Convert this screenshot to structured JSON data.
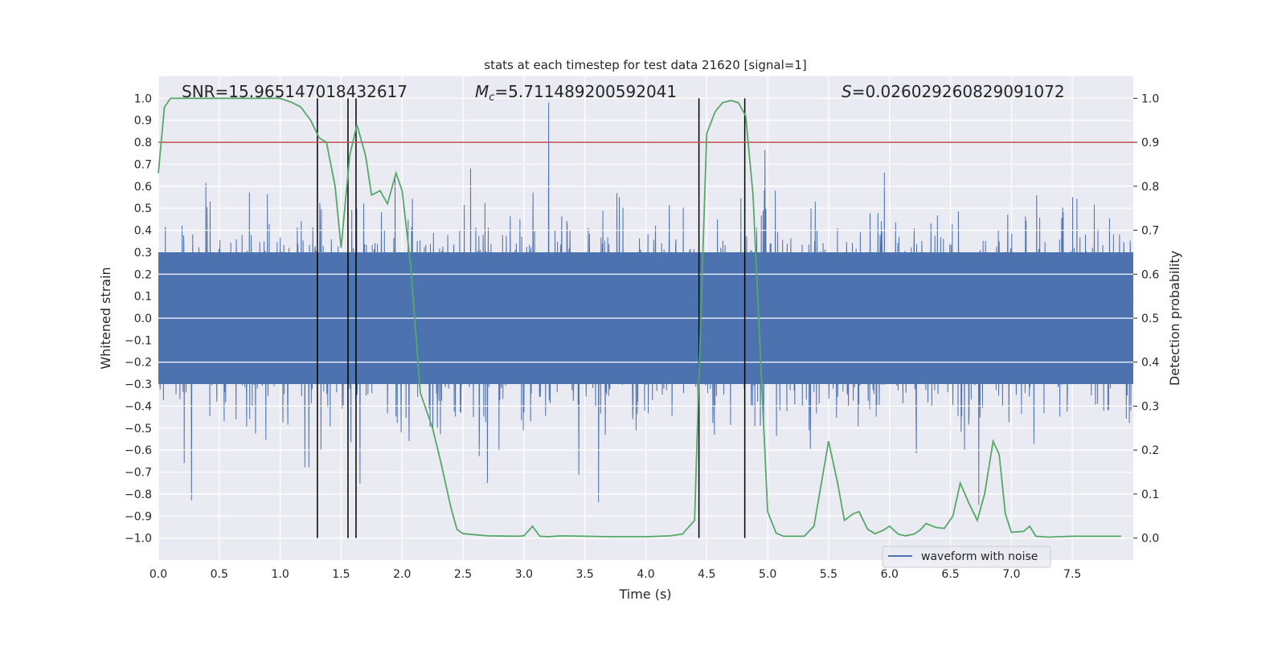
{
  "chart_data": {
    "type": "line",
    "title": "stats at each timestep for test data 21620 [signal=1]",
    "xlabel": "Time (s)",
    "ylabel": "Whitened strain",
    "y2label": "Detection probability",
    "xlim": [
      0,
      8.0
    ],
    "ylim": [
      -1.1,
      1.1
    ],
    "y2lim": [
      -0.05,
      1.05
    ],
    "xticks": [
      "0.0",
      "0.5",
      "1.0",
      "1.5",
      "2.0",
      "2.5",
      "3.0",
      "3.5",
      "4.0",
      "4.5",
      "5.0",
      "5.5",
      "6.0",
      "6.5",
      "7.0",
      "7.5"
    ],
    "yticks": [
      "1.0",
      "0.9",
      "0.8",
      "0.7",
      "0.6",
      "0.5",
      "0.4",
      "0.3",
      "0.2",
      "0.1",
      "0.0",
      "−0.1",
      "−0.2",
      "−0.3",
      "−0.4",
      "−0.5",
      "−0.6",
      "−0.7",
      "−0.8",
      "−0.9",
      "−1.0"
    ],
    "y2ticks": [
      "1.0",
      "0.9",
      "0.8",
      "0.7",
      "0.6",
      "0.5",
      "0.4",
      "0.3",
      "0.2",
      "0.1",
      "0.0"
    ],
    "grid": true,
    "annotations": {
      "snr": "SNR=15.965147018432617",
      "mc_symbol": "M",
      "mc_sub": "c",
      "mc_value": "=5.711489200592041",
      "s_symbol": "S",
      "s_value": "=0.026029260829091072"
    },
    "legend": {
      "placement": "lower-right",
      "entries": [
        "waveform with noise"
      ]
    },
    "threshold": {
      "axis": "left",
      "y": 0.8,
      "color": "#c44e52"
    },
    "vlines": {
      "x": [
        1.305,
        1.556,
        1.622,
        4.436,
        4.812
      ],
      "ymin": -1.0,
      "ymax": 1.0,
      "color": "#000000"
    },
    "series": [
      {
        "name": "waveform with noise",
        "axis": "left",
        "color": "#4c72b0",
        "kind": "noise",
        "typical_range": [
          -0.4,
          0.4
        ],
        "peak_range": [
          -1.0,
          1.0
        ]
      },
      {
        "axis": "right",
        "color": "#55a868",
        "x": [
          0,
          0.05,
          0.1,
          0.3,
          0.6,
          0.9,
          1.0,
          1.1,
          1.17,
          1.25,
          1.32,
          1.38,
          1.45,
          1.5,
          1.57,
          1.63,
          1.7,
          1.75,
          1.82,
          1.88,
          1.95,
          2.0,
          2.07,
          2.15,
          2.25,
          2.32,
          2.4,
          2.45,
          2.5,
          2.7,
          2.95,
          3.0,
          3.07,
          3.13,
          3.2,
          3.3,
          3.5,
          3.7,
          4.0,
          4.2,
          4.3,
          4.4,
          4.45,
          4.5,
          4.57,
          4.63,
          4.7,
          4.76,
          4.82,
          4.88,
          4.95,
          5.0,
          5.07,
          5.13,
          5.3,
          5.38,
          5.5,
          5.57,
          5.63,
          5.7,
          5.75,
          5.82,
          5.88,
          5.95,
          6.0,
          6.07,
          6.13,
          6.2,
          6.25,
          6.3,
          6.38,
          6.45,
          6.52,
          6.58,
          6.65,
          6.72,
          6.78,
          6.85,
          6.9,
          6.95,
          7.0,
          7.1,
          7.15,
          7.2,
          7.3,
          7.5,
          7.9
        ],
        "y": [
          0.83,
          0.98,
          1.0,
          1.0,
          1.0,
          1.0,
          1.0,
          0.99,
          0.98,
          0.95,
          0.91,
          0.9,
          0.8,
          0.66,
          0.87,
          0.94,
          0.87,
          0.78,
          0.79,
          0.76,
          0.83,
          0.79,
          0.62,
          0.33,
          0.25,
          0.17,
          0.07,
          0.02,
          0.01,
          0.005,
          0.004,
          0.005,
          0.027,
          0.004,
          0.003,
          0.005,
          0.004,
          0.003,
          0.003,
          0.005,
          0.009,
          0.04,
          0.49,
          0.92,
          0.97,
          0.99,
          0.995,
          0.99,
          0.96,
          0.78,
          0.36,
          0.06,
          0.011,
          0.004,
          0.004,
          0.027,
          0.22,
          0.13,
          0.04,
          0.055,
          0.06,
          0.02,
          0.01,
          0.018,
          0.027,
          0.009,
          0.005,
          0.009,
          0.018,
          0.033,
          0.024,
          0.022,
          0.05,
          0.125,
          0.08,
          0.04,
          0.1,
          0.22,
          0.19,
          0.055,
          0.013,
          0.015,
          0.027,
          0.004,
          0.002,
          0.004,
          0.004
        ]
      }
    ]
  }
}
